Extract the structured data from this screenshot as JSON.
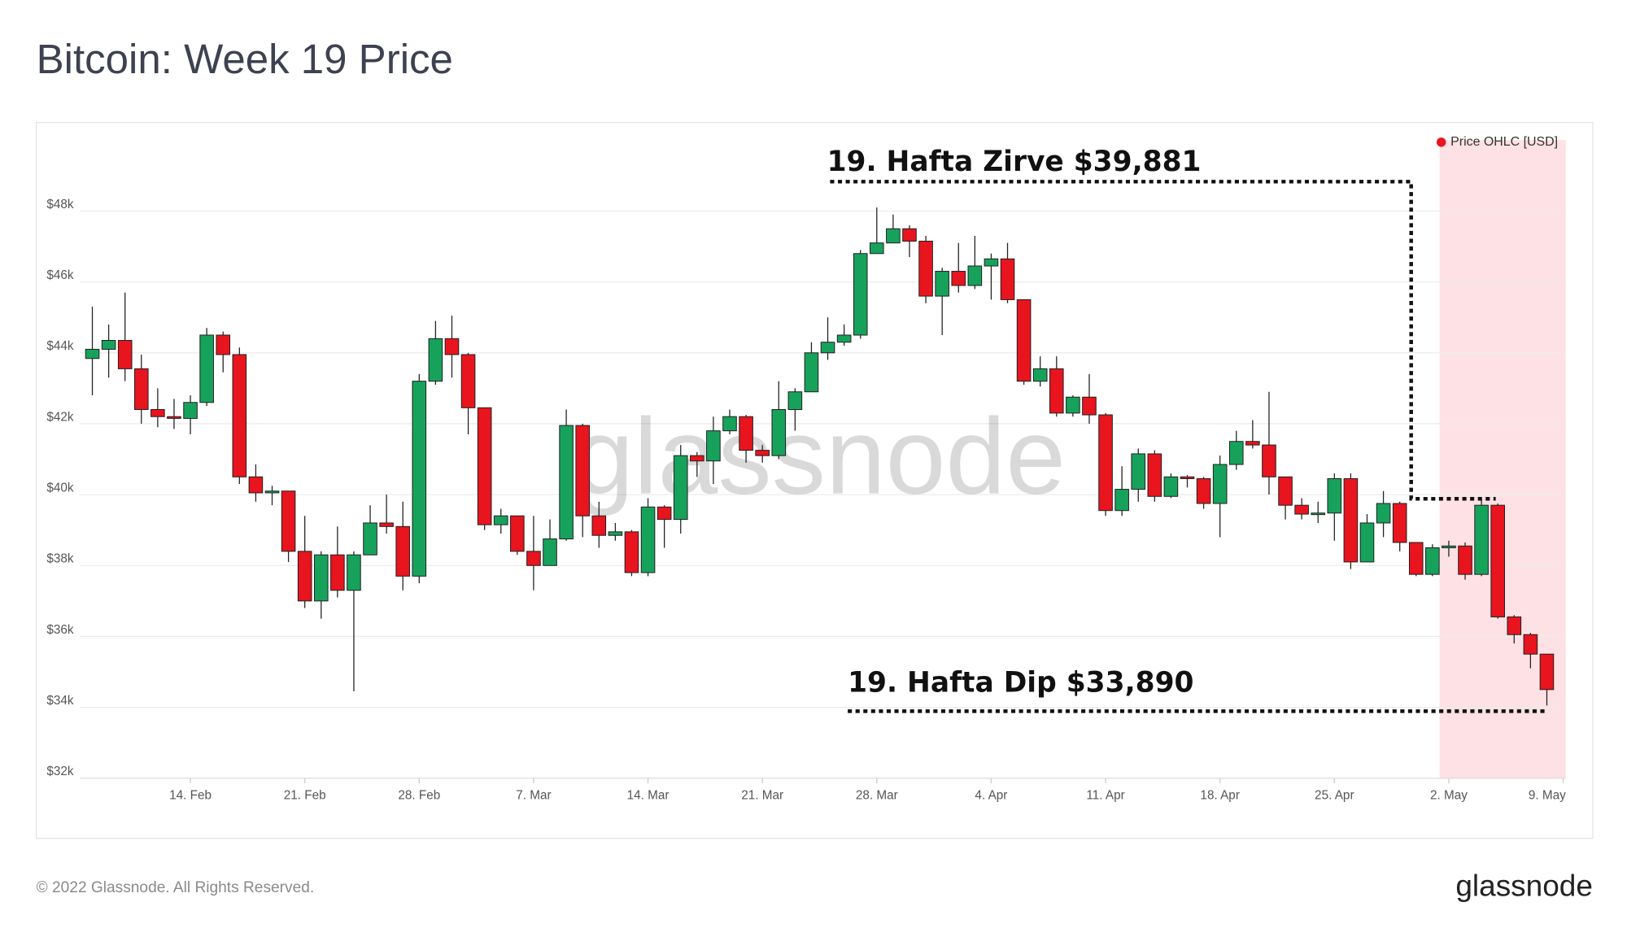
{
  "chart_data": {
    "type": "candlestick",
    "title": "Bitcoin: Week 19 Price",
    "watermark": "glassnode",
    "footer": "© 2022 Glassnode. All Rights Reserved.",
    "logo": "glassnode",
    "legend_position": "top-right",
    "grid": true,
    "ylim": [
      32000,
      50000
    ],
    "yticks": [
      {
        "value": 32000,
        "label": "$32k"
      },
      {
        "value": 34000,
        "label": "$34k"
      },
      {
        "value": 36000,
        "label": "$36k"
      },
      {
        "value": 38000,
        "label": "$38k"
      },
      {
        "value": 40000,
        "label": "$40k"
      },
      {
        "value": 42000,
        "label": "$42k"
      },
      {
        "value": 44000,
        "label": "$44k"
      },
      {
        "value": 46000,
        "label": "$46k"
      },
      {
        "value": 48000,
        "label": "$48k"
      }
    ],
    "xticks": [
      {
        "value": 6,
        "label": "14. Feb"
      },
      {
        "value": 13,
        "label": "21. Feb"
      },
      {
        "value": 20,
        "label": "28. Feb"
      },
      {
        "value": 27,
        "label": "7. Mar"
      },
      {
        "value": 34,
        "label": "14. Mar"
      },
      {
        "value": 41,
        "label": "21. Mar"
      },
      {
        "value": 48,
        "label": "28. Mar"
      },
      {
        "value": 55,
        "label": "4. Apr"
      },
      {
        "value": 62,
        "label": "11. Apr"
      },
      {
        "value": 69,
        "label": "18. Apr"
      },
      {
        "value": 76,
        "label": "25. Apr"
      },
      {
        "value": 83,
        "label": "2. May"
      },
      {
        "value": 90,
        "label": "9. May"
      }
    ],
    "series": [
      {
        "name": "Price OHLC [USD]",
        "color": "#e8141e",
        "up_color": "#17a25c",
        "down_color": "#e8141e",
        "open": [
          43840,
          44100,
          44350,
          43550,
          42400,
          42200,
          42150,
          42600,
          44500,
          43950,
          40500,
          40050,
          40100,
          38400,
          37000,
          38300,
          37300,
          38300,
          39200,
          39100,
          37700,
          43200,
          44400,
          43950,
          42450,
          39150,
          39400,
          38400,
          38000,
          38750,
          41950,
          39400,
          38850,
          38950,
          37800,
          39650,
          39300,
          41100,
          40950,
          41800,
          42200,
          41250,
          41100,
          42400,
          42900,
          44000,
          44300,
          44500,
          46800,
          47100,
          47500,
          47150,
          45600,
          46300,
          45900,
          46450,
          46650,
          45500,
          43200,
          43550,
          42300,
          42750,
          42250,
          39550,
          40150,
          41150,
          39950,
          40500,
          40450,
          39750,
          40850,
          41500,
          41400,
          40500,
          39700,
          39450,
          39480,
          40450,
          38100,
          39200,
          39750,
          38650,
          37750,
          38500,
          38550,
          37750,
          39700,
          36550,
          36050,
          35500
        ],
        "high": [
          45300,
          44800,
          45700,
          43950,
          43000,
          42700,
          42800,
          44700,
          44600,
          44150,
          40850,
          40250,
          40100,
          39400,
          38400,
          39100,
          38400,
          39700,
          40000,
          39800,
          43400,
          44900,
          45050,
          44000,
          42450,
          39600,
          39400,
          39400,
          39300,
          42400,
          42000,
          39800,
          39200,
          39000,
          39900,
          39700,
          41400,
          41200,
          42200,
          42400,
          42250,
          41400,
          43200,
          43000,
          44300,
          45000,
          44800,
          46900,
          48100,
          47900,
          47600,
          47300,
          46400,
          47100,
          47300,
          46800,
          47100,
          45500,
          43900,
          43900,
          42800,
          43400,
          42300,
          40800,
          41300,
          41250,
          40600,
          40550,
          40500,
          41100,
          41800,
          42100,
          42900,
          40500,
          39900,
          39800,
          40600,
          40600,
          39450,
          40100,
          39800,
          38600,
          38600,
          38700,
          38650,
          39850,
          39750,
          36600,
          36100,
          35500
        ],
        "low": [
          42800,
          43300,
          43200,
          42000,
          41900,
          41850,
          41700,
          42500,
          43450,
          40300,
          39800,
          39700,
          38100,
          36800,
          36500,
          37100,
          34450,
          38400,
          38900,
          37300,
          37500,
          43100,
          43300,
          41700,
          39000,
          38900,
          38300,
          37300,
          38000,
          38700,
          38800,
          38500,
          38700,
          37700,
          37700,
          38500,
          38900,
          40500,
          40300,
          41700,
          40900,
          40900,
          41000,
          41800,
          42900,
          43800,
          44200,
          44400,
          46800,
          47100,
          46700,
          45400,
          44500,
          45700,
          45800,
          45500,
          45400,
          43100,
          43050,
          42200,
          42200,
          42000,
          39400,
          39400,
          39800,
          39800,
          39900,
          40200,
          39600,
          38800,
          40700,
          41300,
          40000,
          39300,
          39300,
          39200,
          38700,
          37900,
          38100,
          38800,
          38400,
          37700,
          37700,
          38250,
          37600,
          37700,
          36500,
          35800,
          35100,
          34050
        ],
        "close": [
          44100,
          44350,
          43550,
          42400,
          42200,
          42150,
          42600,
          44500,
          43950,
          40500,
          40050,
          40100,
          38400,
          37000,
          38300,
          37300,
          38300,
          39200,
          39100,
          37700,
          43200,
          44400,
          43950,
          42450,
          39150,
          39400,
          38400,
          38000,
          38750,
          41950,
          39400,
          38850,
          38950,
          37800,
          39650,
          39300,
          41100,
          40950,
          41800,
          42200,
          41250,
          41100,
          42400,
          42900,
          44000,
          44300,
          44500,
          46800,
          47100,
          47500,
          47150,
          45600,
          46300,
          45900,
          46450,
          46650,
          45500,
          43200,
          43550,
          42300,
          42750,
          42250,
          39550,
          40150,
          41150,
          39950,
          40500,
          40450,
          39750,
          40850,
          41500,
          41400,
          40500,
          39700,
          39450,
          39480,
          40450,
          38100,
          39200,
          39750,
          38650,
          37750,
          38500,
          38550,
          37750,
          39700,
          36550,
          36050,
          35500,
          34500
        ]
      }
    ],
    "annotations": [
      {
        "text": "19. Hafta Zirve $39,881",
        "value": 39881
      },
      {
        "text": "19. Hafta Dip $33,890",
        "value": 33890
      }
    ]
  }
}
